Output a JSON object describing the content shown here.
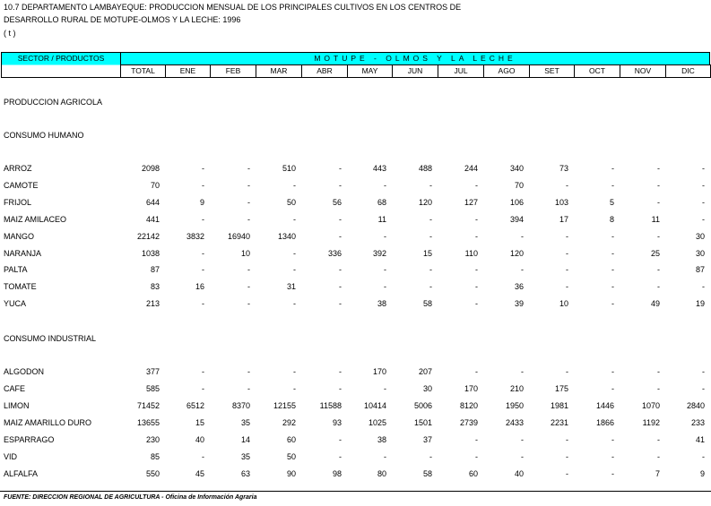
{
  "header": {
    "lines": [
      "10.7  DEPARTAMENTO LAMBAYEQUE: PRODUCCION MENSUAL DE LOS PRINCIPALES CULTIVOS EN LOS CENTROS DE",
      "DESARROLLO RURAL DE MOTUPE-OLMOS Y LA LECHE: 1996",
      "( t )"
    ]
  },
  "table": {
    "sector_header": "SECTOR / PRODUCTOS",
    "region_header": "MOTUPE - OLMOS Y LA LECHE",
    "columns": [
      "TOTAL",
      "ENE",
      "FEB",
      "MAR",
      "ABR",
      "MAY",
      "JUN",
      "JUL",
      "AGO",
      "SET",
      "OCT",
      "NOV",
      "DIC"
    ],
    "group_label": "PRODUCCION AGRICOLA",
    "sections": [
      {
        "label": "CONSUMO HUMANO",
        "rows": [
          {
            "name": "ARROZ",
            "values": [
              2098,
              "-",
              "-",
              510,
              "-",
              443,
              488,
              244,
              340,
              73,
              "-",
              "-",
              "-"
            ]
          },
          {
            "name": "CAMOTE",
            "values": [
              70,
              "-",
              "-",
              "-",
              "-",
              "-",
              "-",
              "-",
              70,
              "-",
              "-",
              "-",
              "-"
            ]
          },
          {
            "name": "FRIJOL",
            "values": [
              644,
              9,
              "-",
              50,
              56,
              68,
              120,
              127,
              106,
              103,
              5,
              "-",
              "-"
            ]
          },
          {
            "name": "MAIZ AMILACEO",
            "values": [
              441,
              "-",
              "-",
              "-",
              "-",
              11,
              "-",
              "-",
              394,
              17,
              8,
              11,
              "-"
            ]
          },
          {
            "name": "MANGO",
            "values": [
              22142,
              3832,
              16940,
              1340,
              "-",
              "-",
              "-",
              "-",
              "-",
              "-",
              "-",
              "-",
              30
            ]
          },
          {
            "name": "NARANJA",
            "values": [
              1038,
              "-",
              10,
              "-",
              336,
              392,
              15,
              110,
              120,
              "-",
              "-",
              25,
              30
            ]
          },
          {
            "name": "PALTA",
            "values": [
              87,
              "-",
              "-",
              "-",
              "-",
              "-",
              "-",
              "-",
              "-",
              "-",
              "-",
              "-",
              87
            ]
          },
          {
            "name": "TOMATE",
            "values": [
              83,
              16,
              "-",
              31,
              "-",
              "-",
              "-",
              "-",
              36,
              "-",
              "-",
              "-",
              "-"
            ]
          },
          {
            "name": "YUCA",
            "values": [
              213,
              "-",
              "-",
              "-",
              "-",
              38,
              58,
              "-",
              39,
              10,
              "-",
              49,
              19
            ]
          }
        ]
      },
      {
        "label": "CONSUMO INDUSTRIAL",
        "rows": [
          {
            "name": "ALGODON",
            "values": [
              377,
              "-",
              "-",
              "-",
              "-",
              170,
              207,
              "-",
              "-",
              "-",
              "-",
              "-",
              "-"
            ]
          },
          {
            "name": "CAFE",
            "values": [
              585,
              "-",
              "-",
              "-",
              "-",
              "-",
              30,
              170,
              210,
              175,
              "-",
              "-",
              "-"
            ]
          },
          {
            "name": "LIMON",
            "values": [
              71452,
              6512,
              8370,
              12155,
              11588,
              10414,
              5006,
              8120,
              1950,
              1981,
              1446,
              1070,
              2840
            ]
          },
          {
            "name": "MAIZ AMARILLO DURO",
            "values": [
              13655,
              15,
              35,
              292,
              93,
              1025,
              1501,
              2739,
              2433,
              2231,
              1866,
              1192,
              233
            ]
          },
          {
            "name": "ESPARRAGO",
            "values": [
              230,
              40,
              14,
              60,
              "-",
              38,
              37,
              "-",
              "-",
              "-",
              "-",
              "-",
              41
            ]
          },
          {
            "name": "VID",
            "values": [
              85,
              "-",
              35,
              50,
              "-",
              "-",
              "-",
              "-",
              "-",
              "-",
              "-",
              "-",
              "-"
            ]
          },
          {
            "name": "ALFALFA",
            "values": [
              550,
              45,
              63,
              90,
              98,
              80,
              58,
              60,
              40,
              "-",
              "-",
              7,
              9
            ]
          }
        ]
      }
    ]
  },
  "footer": {
    "source": "FUENTE: DIRECCION REGIONAL DE AGRICULTURA - Oficina de Información Agraria"
  }
}
